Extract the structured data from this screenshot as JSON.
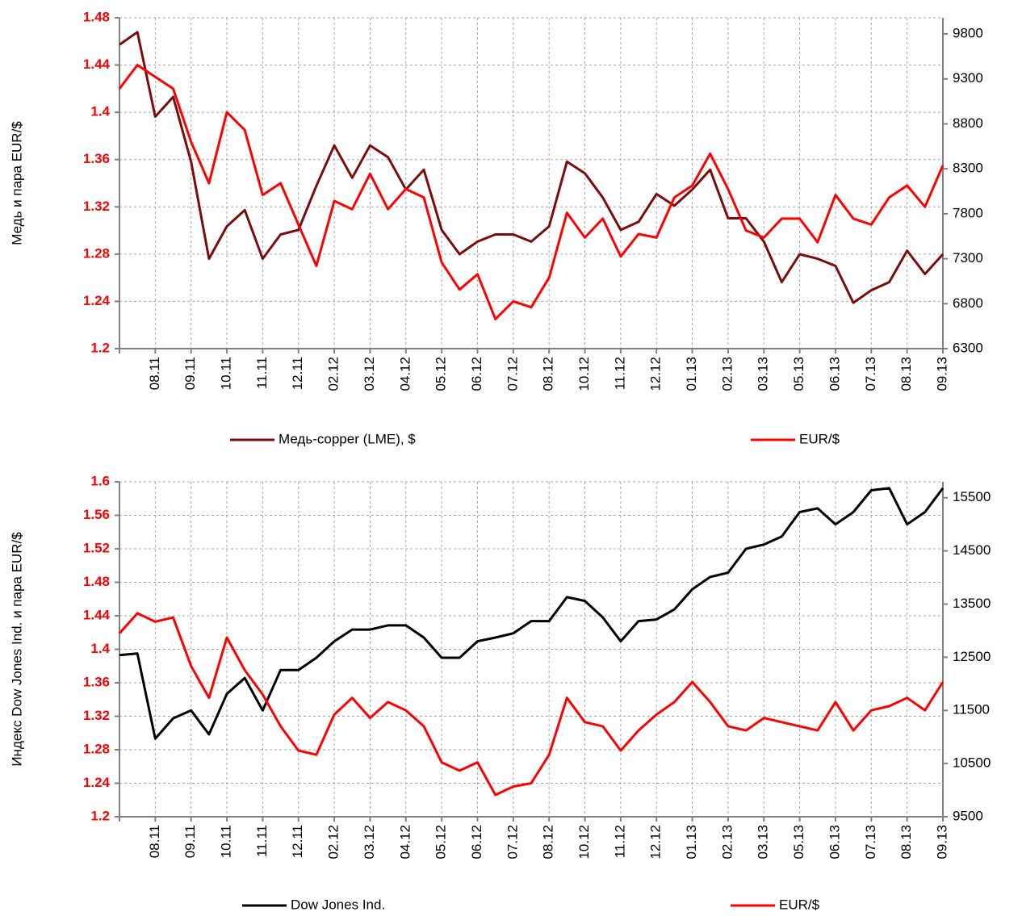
{
  "chart_data": [
    {
      "type": "line",
      "y_label": "Медь и пара EUR/$",
      "categories": [
        null,
        null,
        "08.11",
        null,
        "09.11",
        null,
        "10.11",
        null,
        "11.11",
        null,
        "12.11",
        null,
        "02.12",
        null,
        "03.12",
        null,
        "04.12",
        null,
        "05.12",
        null,
        "06.12",
        null,
        "07.12",
        null,
        "08.12",
        null,
        "10.12",
        null,
        "11.12",
        null,
        "12.12",
        null,
        "01.13",
        null,
        "02.13",
        null,
        "03.13",
        null,
        "05.13",
        null,
        "06.13",
        null,
        "07.13",
        null,
        "08.13",
        null,
        "09.13"
      ],
      "series": [
        {
          "name": "Медь-copper (LME), $",
          "color": "#7b0c0c",
          "axis": "y2",
          "values": [
            9680,
            9820,
            8880,
            9100,
            8380,
            7300,
            7660,
            7840,
            7300,
            7570,
            7620,
            8110,
            8560,
            8200,
            8560,
            8430,
            8070,
            8290,
            7620,
            7350,
            7490,
            7570,
            7570,
            7490,
            7660,
            8380,
            8250,
            7980,
            7620,
            7710,
            8020,
            7890,
            8070,
            8290,
            7750,
            7750,
            7490,
            7040,
            7350,
            7300,
            7220,
            6810,
            6950,
            7040,
            7390,
            7130,
            7350
          ]
        },
        {
          "name": "EUR/$",
          "color": "#ff0000",
          "values": [
            1.42,
            1.44,
            1.43,
            1.42,
            1.375,
            1.34,
            1.4,
            1.385,
            1.33,
            1.34,
            1.305,
            1.27,
            1.325,
            1.318,
            1.348,
            1.318,
            1.335,
            1.328,
            1.273,
            1.25,
            1.263,
            1.225,
            1.24,
            1.235,
            1.26,
            1.315,
            1.294,
            1.31,
            1.278,
            1.297,
            1.294,
            1.328,
            1.338,
            1.365,
            1.335,
            1.3,
            1.294,
            1.31,
            1.31,
            1.29,
            1.33,
            1.31,
            1.305,
            1.328,
            1.338,
            1.32,
            1.355
          ]
        }
      ],
      "ylim": [
        1.2,
        1.48
      ],
      "yticks": [
        1.2,
        1.24,
        1.28,
        1.32,
        1.36,
        1.4,
        1.44,
        1.48
      ],
      "y2lim": [
        6300,
        9980
      ],
      "y2ticks": [
        6300,
        6800,
        7300,
        7800,
        8300,
        8800,
        9300,
        9800
      ],
      "grid": true
    },
    {
      "type": "line",
      "y_label": "Индекс Dow Jones Ind. и пара EUR/$",
      "categories": [
        null,
        null,
        "08.11",
        null,
        "09.11",
        null,
        "10.11",
        null,
        "11.11",
        null,
        "12.11",
        null,
        "02.12",
        null,
        "03.12",
        null,
        "04.12",
        null,
        "05.12",
        null,
        "06.12",
        null,
        "07.12",
        null,
        "08.12",
        null,
        "10.12",
        null,
        "11.12",
        null,
        "12.12",
        null,
        "01.13",
        null,
        "02.13",
        null,
        "03.13",
        null,
        "05.13",
        null,
        "06.13",
        null,
        "07.13",
        null,
        "08.13",
        null,
        "09.13"
      ],
      "series": [
        {
          "name": "Dow Jones Ind.",
          "color": "#000000",
          "axis": "y2",
          "values": [
            12540,
            12570,
            10970,
            11350,
            11500,
            11050,
            11810,
            12110,
            11500,
            12260,
            12260,
            12490,
            12800,
            13020,
            13020,
            13100,
            13100,
            12870,
            12490,
            12490,
            12800,
            12870,
            12950,
            13180,
            13180,
            13630,
            13560,
            13250,
            12800,
            13180,
            13210,
            13400,
            13780,
            14010,
            14090,
            14540,
            14620,
            14770,
            15230,
            15300,
            15000,
            15230,
            15640,
            15680,
            15000,
            15230,
            15680
          ]
        },
        {
          "name": "EUR/$",
          "color": "#ff0000",
          "values": [
            1.419,
            1.443,
            1.433,
            1.438,
            1.38,
            1.342,
            1.414,
            1.375,
            1.346,
            1.308,
            1.279,
            1.274,
            1.322,
            1.342,
            1.318,
            1.337,
            1.327,
            1.308,
            1.265,
            1.255,
            1.265,
            1.226,
            1.236,
            1.24,
            1.274,
            1.342,
            1.313,
            1.308,
            1.279,
            1.303,
            1.322,
            1.337,
            1.361,
            1.337,
            1.308,
            1.303,
            1.318,
            1.313,
            1.308,
            1.303,
            1.337,
            1.303,
            1.327,
            1.332,
            1.342,
            1.327,
            1.361
          ]
        }
      ],
      "ylim": [
        1.2,
        1.6
      ],
      "yticks": [
        1.2,
        1.24,
        1.28,
        1.32,
        1.36,
        1.4,
        1.44,
        1.48,
        1.52,
        1.56,
        1.6
      ],
      "y2lim": [
        9500,
        15800
      ],
      "y2ticks": [
        9500,
        10500,
        11500,
        12500,
        13500,
        14500,
        15500
      ],
      "grid": true
    }
  ]
}
